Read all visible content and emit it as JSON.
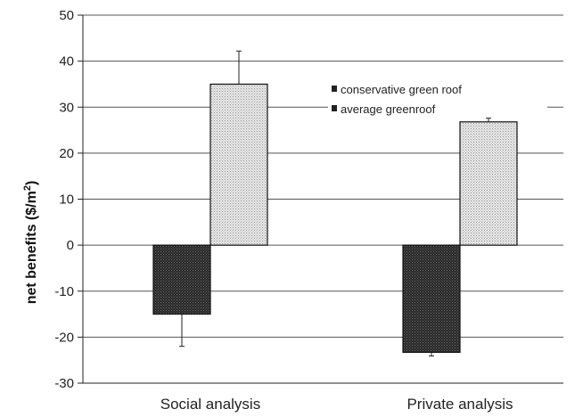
{
  "chart_data": {
    "type": "bar",
    "categories": [
      "Social analysis",
      "Private analysis"
    ],
    "series": [
      {
        "name": "conservative green roof",
        "values": [
          -15,
          -23.3
        ],
        "error": [
          7,
          0.8
        ],
        "color": "#3a3a3a",
        "pattern": "dense-dark-dots"
      },
      {
        "name": "average greenroof",
        "values": [
          35,
          26.8
        ],
        "error": [
          7.2,
          0.8
        ],
        "color": "#d6d6d6",
        "pattern": "light-dots"
      }
    ],
    "ylabel": "net benefits ($/m²)",
    "ylabel_parts": {
      "prefix": "net benefits ($/m",
      "sup": "2",
      "suffix": ")"
    },
    "xlabel": "",
    "ylim": [
      -30,
      50
    ],
    "yticks": [
      "50",
      "40",
      "30",
      "20",
      "10",
      "0",
      "-10",
      "-20",
      "-30"
    ],
    "grid": true,
    "legend_placement": "upper-right"
  }
}
